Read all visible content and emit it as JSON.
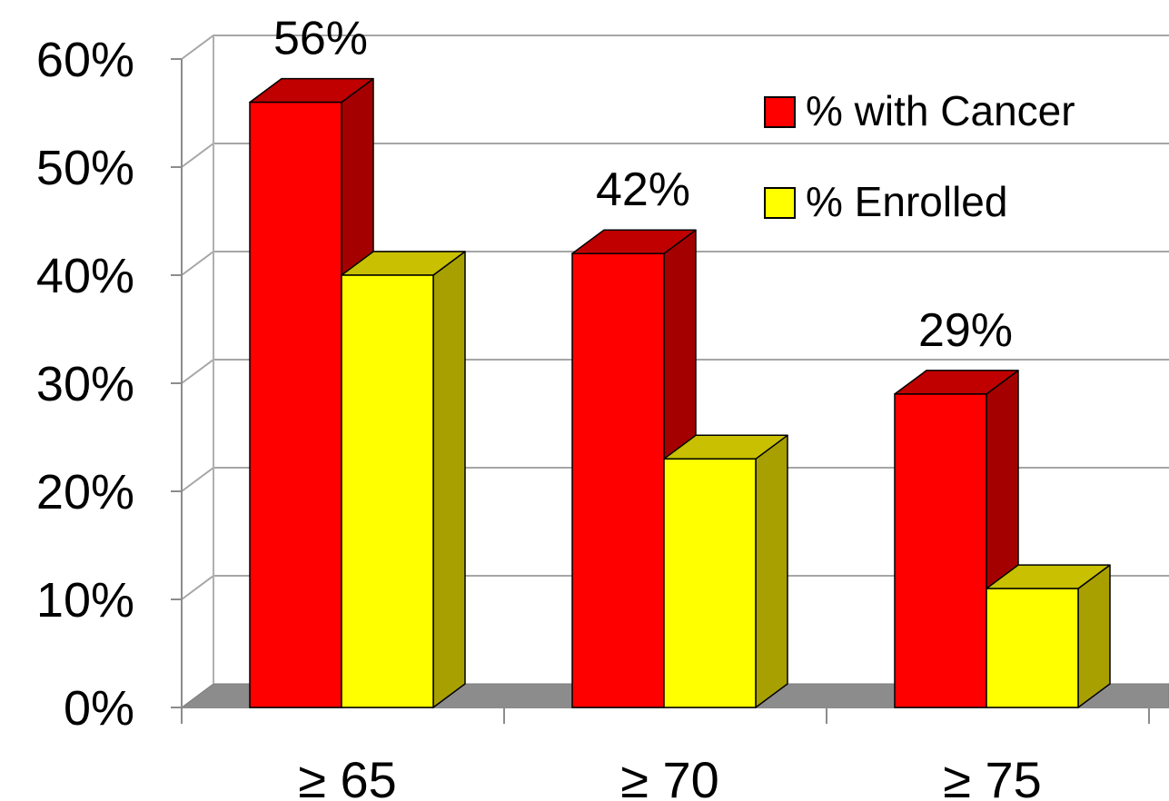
{
  "chart_data": {
    "type": "bar",
    "style": "3d-clustered-column",
    "categories": [
      "≥ 65",
      "≥ 70",
      "≥ 75"
    ],
    "series": [
      {
        "name": "% with Cancer",
        "values": [
          56,
          42,
          29
        ],
        "color": "#ff0000",
        "side_color": "#a50000",
        "top_color": "#c00000"
      },
      {
        "name": "% Enrolled",
        "values": [
          40,
          23,
          11
        ],
        "color": "#ffff00",
        "side_color": "#a8a000",
        "top_color": "#c8c000"
      }
    ],
    "data_labels": [
      "56%",
      "42%",
      "29%"
    ],
    "yticks": [
      "0%",
      "10%",
      "20%",
      "30%",
      "40%",
      "50%",
      "60%"
    ],
    "ylim": [
      0,
      60
    ],
    "grid": true,
    "legend_position": "top-right",
    "title": "",
    "xlabel": "",
    "ylabel": ""
  }
}
